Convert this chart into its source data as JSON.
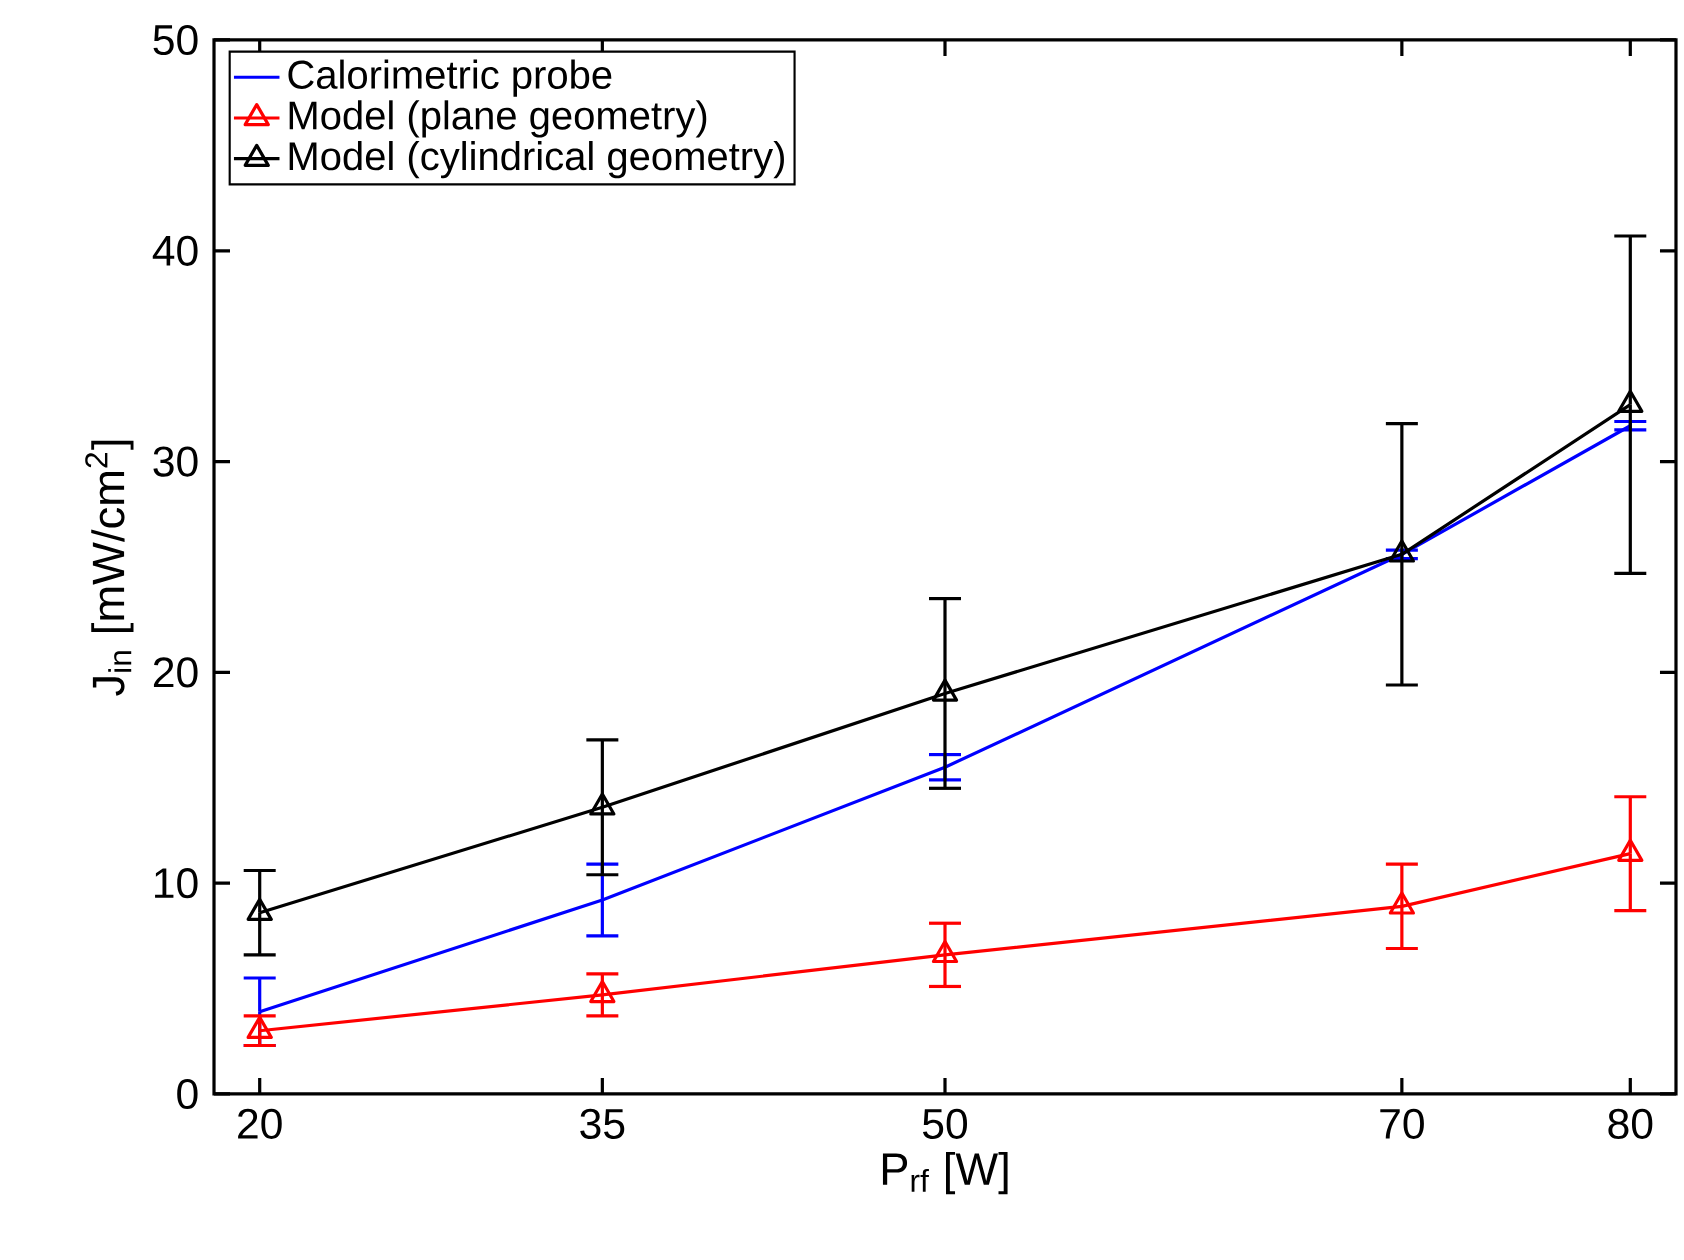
{
  "chart_data": {
    "type": "line",
    "xlabel": "P$_{rf}$ [W]",
    "ylabel": "J$_{in}$ [mW/cm$^{2}$]",
    "x": [
      20,
      35,
      50,
      70,
      80
    ],
    "series": [
      {
        "name": "Calorimetric probe",
        "color": "#0000ff",
        "marker": "none",
        "values": [
          3.9,
          9.2,
          15.5,
          25.6,
          31.7
        ],
        "errors": [
          1.6,
          1.7,
          0.6,
          0.2,
          0.2
        ]
      },
      {
        "name": "Model (plane geometry)",
        "color": "#ff0000",
        "marker": "triangle down",
        "values": [
          3.0,
          4.7,
          6.6,
          8.9,
          11.4
        ],
        "errors": [
          0.7,
          1.0,
          1.5,
          2.0,
          2.7
        ]
      },
      {
        "name": "Model (cylindrical geometry)",
        "color": "#000000",
        "marker": "triangle",
        "values": [
          8.6,
          13.6,
          19.0,
          25.6,
          32.7
        ],
        "errors": [
          2.0,
          3.2,
          4.5,
          6.2,
          8.0
        ]
      }
    ],
    "xlim": [
      18,
      82
    ],
    "ylim": [
      0,
      50
    ],
    "xticks": [
      20,
      35,
      50,
      70,
      80
    ],
    "yticks": [
      0,
      10,
      20,
      30,
      40,
      50
    ],
    "grid": false,
    "legend": "top left",
    "line_style": "solid"
  }
}
